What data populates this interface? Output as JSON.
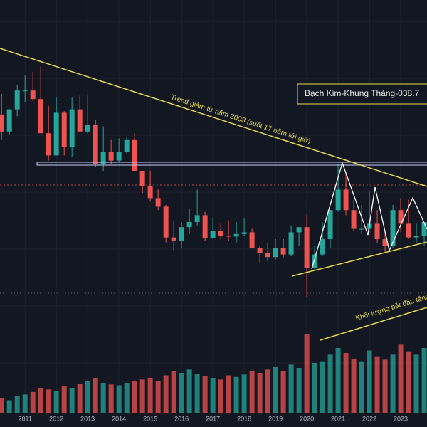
{
  "chart_data": {
    "type": "candlestick",
    "title": "Bạch Kim-Khung Tháng-038.7",
    "annotations": [
      "Trend giảm từ năm 2008 (suốt 17 năm tới giờ)",
      "Khối lượng bắt đầu tăng"
    ],
    "x": [
      2010.25,
      2010.5,
      2010.75,
      2011,
      2011.25,
      2011.5,
      2011.75,
      2012,
      2012.25,
      2012.5,
      2012.75,
      2013,
      2013.25,
      2013.5,
      2013.75,
      2014,
      2014.25,
      2014.5,
      2014.75,
      2015,
      2015.25,
      2015.5,
      2015.75,
      2016,
      2016.25,
      2016.5,
      2016.75,
      2017,
      2017.25,
      2017.5,
      2017.75,
      2018,
      2018.25,
      2018.5,
      2018.75,
      2019,
      2019.25,
      2019.5,
      2019.75,
      2020,
      2020.25,
      2020.5,
      2020.75,
      2021,
      2021.25,
      2021.5,
      2021.75,
      2022,
      2022.25,
      2022.5,
      2022.75,
      2023,
      2023.25,
      2023.5,
      2023.75
    ],
    "open": [
      1630,
      1530,
      1660,
      1770,
      1770,
      1720,
      1520,
      1390,
      1640,
      1440,
      1660,
      1530,
      1570,
      1340,
      1410,
      1360,
      1410,
      1480,
      1300,
      1210,
      1140,
      1090,
      910,
      890,
      970,
      1000,
      1040,
      905,
      950,
      920,
      915,
      930,
      940,
      850,
      820,
      795,
      850,
      810,
      940,
      970,
      730,
      810,
      900,
      1070,
      1190,
      1070,
      960,
      960,
      990,
      900,
      860,
      1070,
      990,
      910,
      920
    ],
    "high": [
      1750,
      1660,
      1800,
      1860,
      1880,
      1910,
      1680,
      1730,
      1650,
      1730,
      1740,
      1740,
      1600,
      1560,
      1480,
      1490,
      1500,
      1520,
      1300,
      1300,
      1190,
      1100,
      1010,
      1000,
      1080,
      1190,
      1060,
      1030,
      990,
      1010,
      1000,
      1020,
      960,
      860,
      880,
      900,
      900,
      980,
      960,
      1040,
      860,
      1000,
      1070,
      1340,
      1290,
      1130,
      1100,
      1180,
      1070,
      950,
      1100,
      1140,
      1130,
      990,
      1000
    ],
    "low": [
      1480,
      1510,
      1620,
      1700,
      1710,
      1520,
      1360,
      1390,
      1390,
      1380,
      1540,
      1520,
      1320,
      1300,
      1340,
      1350,
      1400,
      1300,
      1170,
      1120,
      1070,
      880,
      830,
      850,
      930,
      980,
      890,
      900,
      900,
      890,
      880,
      920,
      850,
      760,
      770,
      780,
      790,
      800,
      860,
      560,
      720,
      800,
      850,
      1060,
      1040,
      950,
      930,
      940,
      880,
      820,
      850,
      940,
      900,
      880,
      860
    ],
    "close": [
      1530,
      1660,
      1770,
      1770,
      1720,
      1520,
      1390,
      1640,
      1440,
      1660,
      1530,
      1570,
      1340,
      1410,
      1360,
      1410,
      1480,
      1300,
      1210,
      1140,
      1090,
      910,
      890,
      970,
      1000,
      1040,
      905,
      950,
      920,
      915,
      930,
      940,
      850,
      820,
      795,
      850,
      810,
      940,
      970,
      730,
      810,
      900,
      1070,
      1190,
      1070,
      960,
      960,
      990,
      900,
      860,
      1070,
      990,
      910,
      920,
      1000
    ],
    "volume": [
      18,
      15,
      20,
      22,
      25,
      30,
      28,
      26,
      32,
      30,
      35,
      38,
      42,
      36,
      34,
      33,
      36,
      38,
      40,
      42,
      38,
      45,
      50,
      48,
      52,
      47,
      44,
      42,
      40,
      45,
      43,
      46,
      50,
      48,
      52,
      55,
      50,
      58,
      54,
      95,
      60,
      62,
      70,
      78,
      72,
      65,
      62,
      75,
      68,
      64,
      70,
      82,
      74,
      70,
      78
    ],
    "up_color": "#26a69a",
    "down_color": "#ef5350",
    "xlim": [
      2010.2,
      2023.84
    ],
    "ylim": [
      550,
      2300
    ],
    "volume_lim": [
      0,
      120
    ],
    "xticks": [
      2011,
      2012,
      2013,
      2014,
      2015,
      2016,
      2017,
      2018,
      2019,
      2020,
      2021,
      2022,
      2023
    ]
  }
}
